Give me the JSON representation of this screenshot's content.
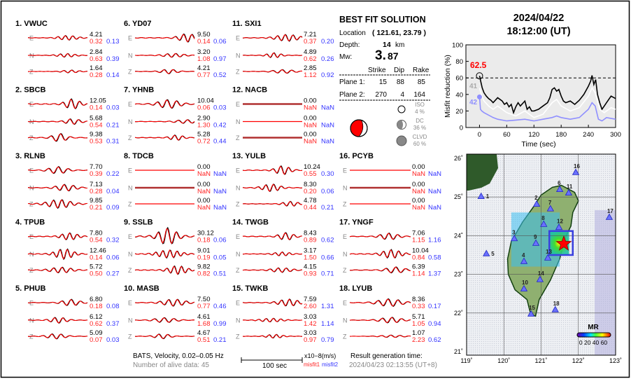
{
  "stations": [
    {
      "id": "1.",
      "name": "VWUC",
      "comps": [
        [
          "4.21",
          "0.32",
          "0.13"
        ],
        [
          "2.84",
          "0.63",
          "0.39"
        ],
        [
          "1.64",
          "0.28",
          "0.14"
        ]
      ]
    },
    {
      "id": "2.",
      "name": "SBCB",
      "comps": [
        [
          "12.05",
          "0.14",
          "0.03"
        ],
        [
          "5.68",
          "0.54",
          "0.21"
        ],
        [
          "9.38",
          "0.53",
          "0.31"
        ]
      ]
    },
    {
      "id": "3.",
      "name": "RLNB",
      "comps": [
        [
          "7.70",
          "0.39",
          "0.22"
        ],
        [
          "7.13",
          "0.28",
          "0.04"
        ],
        [
          "9.85",
          "0.21",
          "0.09"
        ]
      ]
    },
    {
      "id": "4.",
      "name": "TPUB",
      "comps": [
        [
          "7.80",
          "0.54",
          "0.32"
        ],
        [
          "12.46",
          "0.14",
          "0.06"
        ],
        [
          "5.72",
          "0.50",
          "0.27"
        ]
      ]
    },
    {
      "id": "5.",
      "name": "PHUB",
      "comps": [
        [
          "6.80",
          "0.18",
          "0.08"
        ],
        [
          "6.12",
          "0.62",
          "0.37"
        ],
        [
          "5.09",
          "0.07",
          "0.03"
        ]
      ]
    },
    {
      "id": "6.",
      "name": "YD07",
      "comps": [
        [
          "9.50",
          "0.14",
          "0.06"
        ],
        [
          "3.20",
          "1.08",
          "0.97"
        ],
        [
          "4.21",
          "0.77",
          "0.52"
        ]
      ]
    },
    {
      "id": "7.",
      "name": "YHNB",
      "comps": [
        [
          "10.04",
          "0.06",
          "0.03"
        ],
        [
          "2.90",
          "1.30",
          "0.42"
        ],
        [
          "5.28",
          "0.72",
          "0.44"
        ]
      ]
    },
    {
      "id": "8.",
      "name": "TDCB",
      "comps": [
        [
          "0.00",
          "NaN",
          "NaN"
        ],
        [
          "0.00",
          "NaN",
          "NaN"
        ],
        [
          "0.00",
          "NaN",
          "NaN"
        ]
      ]
    },
    {
      "id": "9.",
      "name": "SSLB",
      "comps": [
        [
          "30.12",
          "0.18",
          "0.06"
        ],
        [
          "9.01",
          "0.19",
          "0.05"
        ],
        [
          "9.82",
          "0.82",
          "0.51"
        ]
      ]
    },
    {
      "id": "10.",
      "name": "MASB",
      "comps": [
        [
          "7.50",
          "0.77",
          "0.46"
        ],
        [
          "4.61",
          "1.68",
          "0.99"
        ],
        [
          "4.67",
          "0.51",
          "0.21"
        ]
      ]
    },
    {
      "id": "11.",
      "name": "SXI1",
      "comps": [
        [
          "7.21",
          "0.37",
          "0.20"
        ],
        [
          "4.89",
          "0.62",
          "0.26"
        ],
        [
          "2.85",
          "1.12",
          "0.92"
        ]
      ]
    },
    {
      "id": "12.",
      "name": "NACB",
      "comps": [
        [
          "0.00",
          "NaN",
          "NaN"
        ],
        [
          "0.00",
          "NaN",
          "NaN"
        ],
        [
          "0.00",
          "NaN",
          "NaN"
        ]
      ]
    },
    {
      "id": "13.",
      "name": "YULB",
      "comps": [
        [
          "10.24",
          "0.55",
          "0.30"
        ],
        [
          "8.30",
          "0.20",
          "0.06"
        ],
        [
          "4.78",
          "0.44",
          "0.21"
        ]
      ]
    },
    {
      "id": "14.",
      "name": "TWGB",
      "comps": [
        [
          "8.43",
          "0.89",
          "0.62"
        ],
        [
          "3.17",
          "1.50",
          "0.66"
        ],
        [
          "4.15",
          "0.93",
          "0.71"
        ]
      ]
    },
    {
      "id": "15.",
      "name": "TWKB",
      "comps": [
        [
          "7.59",
          "2.60",
          "1.31"
        ],
        [
          "3.03",
          "1.42",
          "1.14"
        ],
        [
          "3.03",
          "0.97",
          "0.79"
        ]
      ]
    },
    {
      "id": "16.",
      "name": "PCYB",
      "comps": [
        [
          "0.00",
          "NaN",
          "NaN"
        ],
        [
          "0.00",
          "NaN",
          "NaN"
        ],
        [
          "0.00",
          "NaN",
          "NaN"
        ]
      ]
    },
    {
      "id": "17.",
      "name": "YNGF",
      "comps": [
        [
          "7.06",
          "1.15",
          "1.16"
        ],
        [
          "10.04",
          "0.84",
          "0.58"
        ],
        [
          "6.39",
          "1.14",
          "1.37"
        ]
      ]
    },
    {
      "id": "18.",
      "name": "LYUB",
      "comps": [
        [
          "8.36",
          "0.33",
          "0.17"
        ],
        [
          "5.71",
          "1.05",
          "0.94"
        ],
        [
          "1.07",
          "2.23",
          "0.62"
        ]
      ]
    }
  ],
  "component_labels": [
    "E",
    "N",
    "Z"
  ],
  "footer": {
    "source": "BATS, Velocity, 0.02–0.05 Hz",
    "alive": "Number of alive data: 45",
    "scale": "100 sec",
    "unit": "x10−8(m/s)",
    "misfit1": "misfit1",
    "misfit2": "misfit2",
    "gen_label": "Result generation time:",
    "gen_time": "2024/04/23 02:13:55 (UT+8)"
  },
  "solution": {
    "title": "BEST FIT SOLUTION",
    "location_label": "Location",
    "location": "( 121.61,  23.79 )",
    "depth_label": "Depth:",
    "depth": "14",
    "depth_unit": "km",
    "mw_label": "Mw:",
    "mw_int": "3.",
    "mw_frac": "87",
    "headers": [
      "Strike",
      "Dip",
      "Rake"
    ],
    "planes": [
      {
        "label": "Plane 1:",
        "values": [
          "15",
          "88",
          "85"
        ]
      },
      {
        "label": "Plane 2:",
        "values": [
          "270",
          "4",
          "164"
        ]
      }
    ],
    "iso": {
      "label": "ISO",
      "pct": "4  %"
    },
    "dc": {
      "label": "DC",
      "pct": "36 %"
    },
    "clvd": {
      "label": "CLVD",
      "pct": "60 %"
    }
  },
  "event": {
    "date": "2024/04/22",
    "time": "18:12:00  (UT)"
  },
  "chart_data": {
    "type": "line",
    "xlabel": "Time (sec)",
    "ylabel": "Misfit reduction (%)",
    "xlim": [
      -30,
      300
    ],
    "ylim": [
      0,
      100
    ],
    "xticks": [
      0,
      60,
      120,
      180,
      240,
      300
    ],
    "yticks": [
      0,
      20,
      40,
      60,
      80,
      100
    ],
    "grid": false,
    "best_label": "62.5",
    "best_time": 0,
    "best_value": 62.5,
    "reference_line": 60,
    "count_labels": [
      "41",
      "42"
    ],
    "series": [
      {
        "color": "#000000",
        "x": [
          0,
          3,
          6,
          10,
          15,
          20,
          25,
          30,
          40,
          50,
          55,
          60,
          65,
          70,
          75,
          80,
          85,
          90,
          100,
          105,
          110,
          115,
          120,
          130,
          140,
          150,
          155,
          160,
          165,
          170,
          175,
          180,
          185,
          190,
          200,
          210,
          220,
          230,
          240,
          245,
          248,
          252,
          256,
          260,
          265,
          270,
          275,
          280,
          290,
          300
        ],
        "y": [
          62.5,
          55,
          48,
          42,
          38,
          35,
          33,
          30,
          36,
          32,
          28,
          30,
          25,
          28,
          18,
          25,
          30,
          26,
          32,
          22,
          25,
          20,
          20,
          22,
          26,
          30,
          36,
          46,
          48,
          44,
          46,
          38,
          32,
          30,
          32,
          28,
          33,
          40,
          50,
          56,
          63,
          52,
          58,
          40,
          30,
          22,
          26,
          30,
          38,
          35
        ]
      },
      {
        "color": "#ffffff",
        "x": [
          0,
          5,
          10,
          20,
          30,
          40,
          60,
          80,
          100,
          120,
          140,
          160,
          170,
          180,
          200,
          220,
          240,
          248,
          255,
          265,
          275,
          290,
          300
        ],
        "y": [
          48,
          38,
          32,
          26,
          22,
          26,
          18,
          14,
          20,
          12,
          16,
          30,
          34,
          26,
          20,
          24,
          38,
          48,
          42,
          22,
          18,
          24,
          22
        ]
      },
      {
        "color": "#8f8fff",
        "x": [
          0,
          2,
          5,
          10,
          20,
          30,
          40,
          60,
          80,
          100,
          120,
          140,
          160,
          170,
          180,
          200,
          220,
          240,
          248,
          255,
          262,
          270,
          280,
          300
        ],
        "y": [
          37,
          22,
          20,
          18,
          15,
          12,
          10,
          8,
          9,
          10,
          8,
          10,
          12,
          14,
          12,
          10,
          12,
          22,
          30,
          26,
          10,
          8,
          12,
          10
        ]
      }
    ]
  },
  "map": {
    "lon_ticks": [
      "119˚",
      "120˚",
      "121˚",
      "122˚",
      "123˚"
    ],
    "lat_ticks": [
      "26˚",
      "25˚",
      "24˚",
      "23˚",
      "22˚",
      "21˚"
    ],
    "epicenter": {
      "lon": 121.61,
      "lat": 23.79
    },
    "colorbar_title": "MR",
    "colorbar_labels": "0 20 40 60",
    "stations": [
      {
        "n": "1",
        "lon": 119.39,
        "lat": 25.02
      },
      {
        "n": "2",
        "lon": 120.88,
        "lat": 24.82
      },
      {
        "n": "3",
        "lon": 120.28,
        "lat": 23.93
      },
      {
        "n": "4",
        "lon": 120.54,
        "lat": 23.34
      },
      {
        "n": "5",
        "lon": 119.53,
        "lat": 23.54
      },
      {
        "n": "6",
        "lon": 121.5,
        "lat": 25.2
      },
      {
        "n": "7",
        "lon": 121.25,
        "lat": 24.7
      },
      {
        "n": "8",
        "lon": 121.07,
        "lat": 24.3
      },
      {
        "n": "9",
        "lon": 120.86,
        "lat": 23.81
      },
      {
        "n": "10",
        "lon": 120.54,
        "lat": 22.63
      },
      {
        "n": "11",
        "lon": 121.74,
        "lat": 25.11
      },
      {
        "n": "12",
        "lon": 121.48,
        "lat": 24.22
      },
      {
        "n": "13",
        "lon": 121.18,
        "lat": 23.43
      },
      {
        "n": "14",
        "lon": 120.97,
        "lat": 22.87
      },
      {
        "n": "15",
        "lon": 120.73,
        "lat": 21.98
      },
      {
        "n": "16",
        "lon": 121.93,
        "lat": 25.64
      },
      {
        "n": "17",
        "lon": 122.83,
        "lat": 24.48
      },
      {
        "n": "18",
        "lon": 121.38,
        "lat": 22.09
      }
    ]
  }
}
